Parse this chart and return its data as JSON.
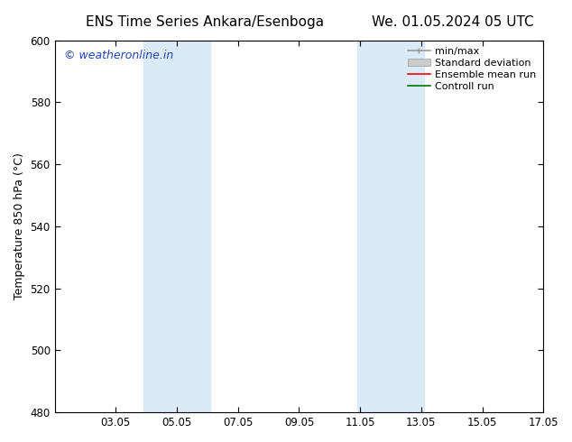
{
  "title_left": "ENS Time Series Ankara/Esenboga",
  "title_right": "We. 01.05.2024 05 UTC",
  "ylabel": "Temperature 850 hPa (°C)",
  "ylim": [
    480,
    600
  ],
  "yticks": [
    480,
    500,
    520,
    540,
    560,
    580,
    600
  ],
  "xlim": [
    1.0,
    17.0
  ],
  "xtick_positions": [
    3,
    5,
    7,
    9,
    11,
    13,
    15,
    17
  ],
  "xtick_labels": [
    "03.05",
    "05.05",
    "07.05",
    "09.05",
    "11.05",
    "13.05",
    "15.05",
    "17.05"
  ],
  "shaded_bands": [
    {
      "x_start": 3.9,
      "x_end": 6.1
    },
    {
      "x_start": 10.9,
      "x_end": 13.1
    }
  ],
  "shade_color": "#daeaf7",
  "background_color": "#ffffff",
  "watermark_text": "© weatheronline.in",
  "watermark_color": "#2244bb",
  "title_fontsize": 11,
  "ylabel_fontsize": 9,
  "tick_fontsize": 8.5,
  "legend_fontsize": 8,
  "watermark_fontsize": 9
}
